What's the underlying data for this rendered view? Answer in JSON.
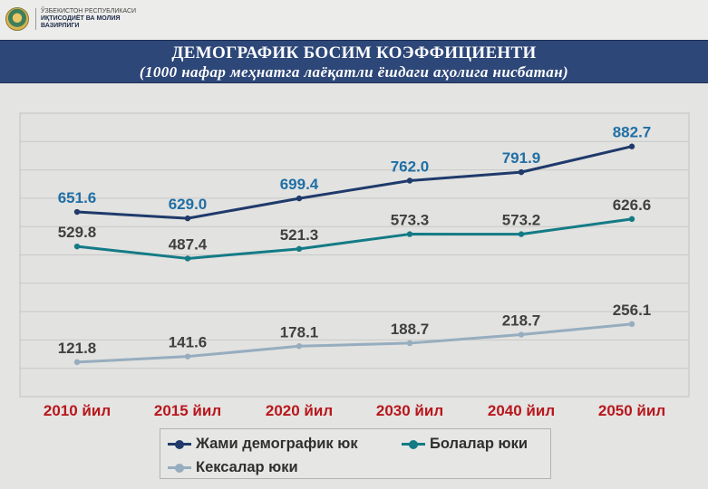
{
  "header": {
    "org_line1": "ЎЗБЕКИСТОН РЕСПУБЛИКАСИ",
    "org_line2": "ИҚТИСОДИЁТ ВА МОЛИЯ",
    "org_line3": "ВАЗИРЛИГИ"
  },
  "colors": {
    "title_band": "#2d4778",
    "total_series": "#1f3a6b",
    "children_series": "#137b86",
    "elderly_series": "#96adbf",
    "category_labels": "#b8171d",
    "label_blue": "#1f6fa6",
    "label_dark": "#404040"
  },
  "chart_data": {
    "type": "line",
    "title": "ДЕМОГРАФИК БОСИМ КОЭФФИЦИЕНТИ",
    "subtitle": "(1000 нафар меҳнатга лаёқатли ёшдаги аҳолига нисбатан)",
    "categories": [
      "2010 йил",
      "2015 йил",
      "2020 йил",
      "2030 йил",
      "2040 йил",
      "2050 йил"
    ],
    "ylim": [
      0,
      1000
    ],
    "grid": true,
    "legend_position": "bottom",
    "series": [
      {
        "name": "Жами демографик юк",
        "values": [
          651.6,
          629.0,
          699.4,
          762.0,
          791.9,
          882.7
        ],
        "labels": [
          "651.6",
          "629.0",
          "699.4",
          "762.0",
          "791.9",
          "882.7"
        ]
      },
      {
        "name": "Болалар юки",
        "values": [
          529.8,
          487.4,
          521.3,
          573.3,
          573.2,
          626.6
        ],
        "labels": [
          "529.8",
          "487.4",
          "521.3",
          "573.3",
          "573.2",
          "626.6"
        ]
      },
      {
        "name": "Кексалар юки",
        "values": [
          121.8,
          141.6,
          178.1,
          188.7,
          218.7,
          256.1
        ],
        "labels": [
          "121.8",
          "141.6",
          "178.1",
          "188.7",
          "218.7",
          "256.1"
        ]
      }
    ]
  }
}
